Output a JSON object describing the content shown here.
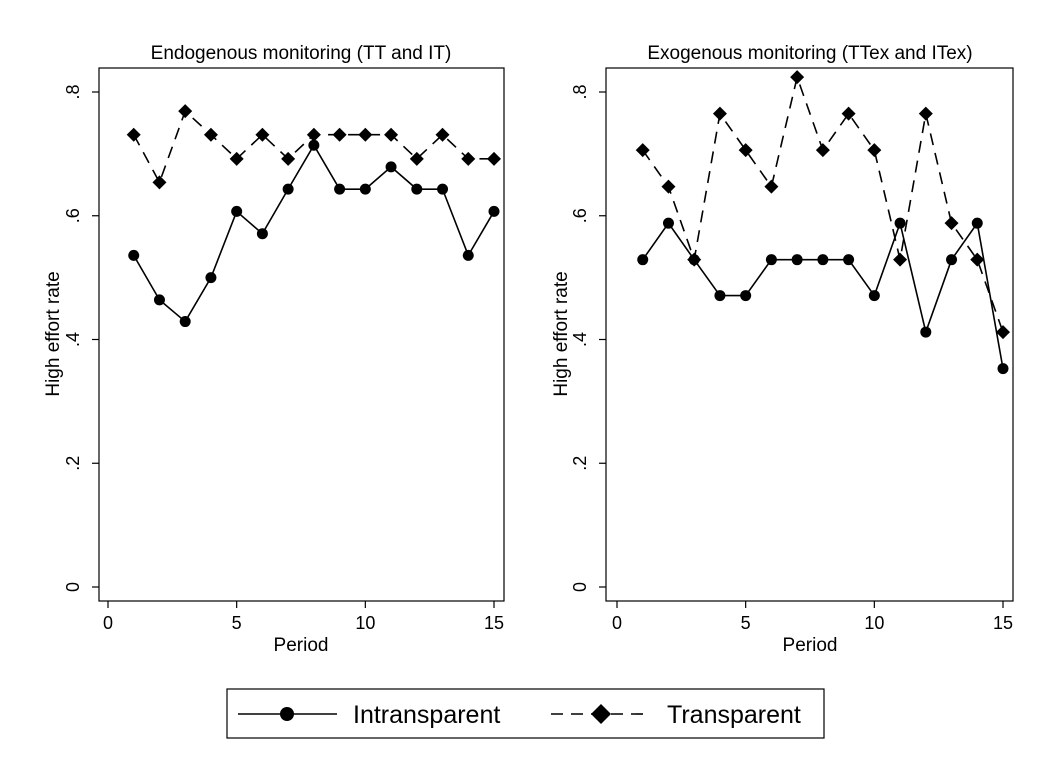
{
  "chart_data": [
    {
      "type": "line",
      "title": "Endogenous monitoring (TT and IT)",
      "xlabel": "Period",
      "ylabel": "High effort rate",
      "xlim": [
        0,
        15
      ],
      "ylim": [
        0,
        0.8
      ],
      "xticks": [
        0,
        5,
        10,
        15
      ],
      "xtick_labels": [
        "0",
        "5",
        "10",
        "15"
      ],
      "yticks": [
        0,
        0.2,
        0.4,
        0.6,
        0.8
      ],
      "ytick_labels": [
        "0",
        ".2",
        ".4",
        ".6",
        ".8"
      ],
      "grid": false,
      "x": [
        1,
        2,
        3,
        4,
        5,
        6,
        7,
        8,
        9,
        10,
        11,
        12,
        13,
        14,
        15
      ],
      "series": [
        {
          "name": "Intransparent",
          "marker": "circle",
          "line": "solid",
          "values": [
            0.536,
            0.464,
            0.429,
            0.5,
            0.607,
            0.571,
            0.643,
            0.714,
            0.643,
            0.643,
            0.679,
            0.643,
            0.643,
            0.536,
            0.607
          ]
        },
        {
          "name": "Transparent",
          "marker": "diamond",
          "line": "dashed",
          "values": [
            0.731,
            0.654,
            0.769,
            0.731,
            0.692,
            0.731,
            0.692,
            0.731,
            0.731,
            0.731,
            0.731,
            0.692,
            0.731,
            0.692,
            0.692
          ]
        }
      ]
    },
    {
      "type": "line",
      "title": "Exogenous monitoring (TTex and ITex)",
      "xlabel": "Period",
      "ylabel": "High effort rate",
      "xlim": [
        0,
        15
      ],
      "ylim": [
        0,
        0.8
      ],
      "xticks": [
        0,
        5,
        10,
        15
      ],
      "xtick_labels": [
        "0",
        "5",
        "10",
        "15"
      ],
      "yticks": [
        0,
        0.2,
        0.4,
        0.6,
        0.8
      ],
      "ytick_labels": [
        "0",
        ".2",
        ".4",
        ".6",
        ".8"
      ],
      "grid": false,
      "x": [
        1,
        2,
        3,
        4,
        5,
        6,
        7,
        8,
        9,
        10,
        11,
        12,
        13,
        14,
        15
      ],
      "series": [
        {
          "name": "Intransparent",
          "marker": "circle",
          "line": "solid",
          "values": [
            0.529,
            0.588,
            0.529,
            0.471,
            0.471,
            0.529,
            0.529,
            0.529,
            0.529,
            0.471,
            0.588,
            0.412,
            0.529,
            0.588,
            0.353
          ]
        },
        {
          "name": "Transparent",
          "marker": "diamond",
          "line": "dashed",
          "values": [
            0.706,
            0.647,
            0.529,
            0.765,
            0.706,
            0.647,
            0.824,
            0.706,
            0.765,
            0.706,
            0.529,
            0.765,
            0.588,
            0.529,
            0.412
          ]
        }
      ]
    }
  ],
  "legend": {
    "position": "bottom-center",
    "items": [
      {
        "label": "Intransparent",
        "marker": "circle",
        "line": "solid"
      },
      {
        "label": "Transparent",
        "marker": "diamond",
        "line": "dashed"
      }
    ]
  },
  "colors": {
    "line": "#000000",
    "background": "#ffffff"
  }
}
